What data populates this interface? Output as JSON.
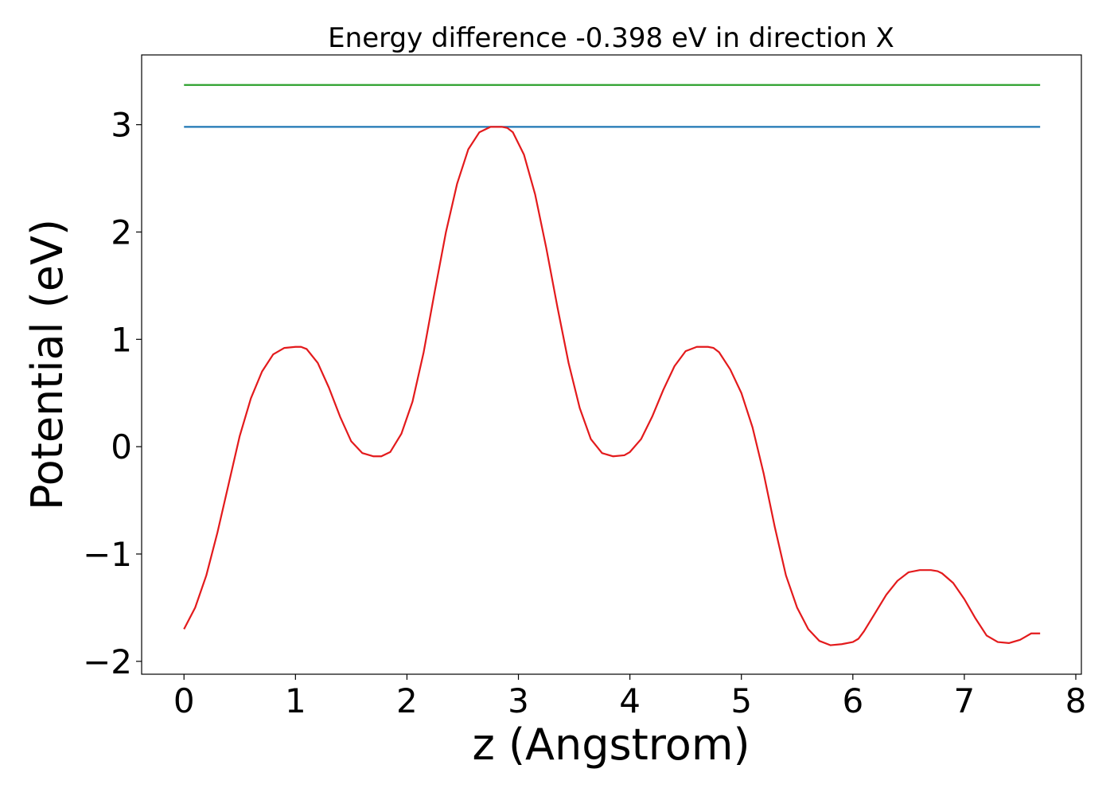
{
  "chart_data": {
    "type": "line",
    "title": "Energy difference -0.398 eV in direction X",
    "xlabel": "z (Angstrom)",
    "ylabel": "Potential (eV)",
    "xlim": [
      -0.38,
      8.05
    ],
    "ylim": [
      -2.12,
      3.65
    ],
    "xticks": [
      0,
      1,
      2,
      3,
      4,
      5,
      6,
      7,
      8
    ],
    "xtick_labels": [
      "0",
      "1",
      "2",
      "3",
      "4",
      "5",
      "6",
      "7",
      "8"
    ],
    "yticks": [
      -2,
      -1,
      0,
      1,
      2,
      3
    ],
    "ytick_labels": [
      "−2",
      "−1",
      "0",
      "1",
      "2",
      "3"
    ],
    "grid": false,
    "series": [
      {
        "color": "#2ca02c",
        "x": [
          0,
          7.68
        ],
        "y": [
          3.37,
          3.37
        ]
      },
      {
        "color": "#1f77b4",
        "x": [
          0,
          7.68
        ],
        "y": [
          2.98,
          2.98
        ]
      },
      {
        "color": "#e31a1c",
        "x": [
          0.0,
          0.1,
          0.2,
          0.3,
          0.4,
          0.5,
          0.6,
          0.7,
          0.8,
          0.9,
          1.0,
          1.05,
          1.1,
          1.2,
          1.3,
          1.4,
          1.5,
          1.6,
          1.7,
          1.77,
          1.85,
          1.95,
          2.05,
          2.15,
          2.25,
          2.35,
          2.45,
          2.55,
          2.65,
          2.75,
          2.85,
          2.9,
          2.95,
          3.05,
          3.15,
          3.25,
          3.35,
          3.45,
          3.55,
          3.65,
          3.75,
          3.85,
          3.95,
          4.0,
          4.1,
          4.2,
          4.3,
          4.4,
          4.5,
          4.6,
          4.7,
          4.75,
          4.8,
          4.9,
          5.0,
          5.1,
          5.2,
          5.3,
          5.4,
          5.5,
          5.6,
          5.7,
          5.8,
          5.9,
          6.0,
          6.05,
          6.1,
          6.2,
          6.3,
          6.4,
          6.5,
          6.6,
          6.7,
          6.76,
          6.8,
          6.9,
          7.0,
          7.1,
          7.2,
          7.3,
          7.4,
          7.5,
          7.55,
          7.6,
          7.68
        ],
        "y": [
          -1.7,
          -1.5,
          -1.2,
          -0.8,
          -0.35,
          0.1,
          0.45,
          0.7,
          0.86,
          0.92,
          0.93,
          0.93,
          0.91,
          0.78,
          0.55,
          0.28,
          0.05,
          -0.06,
          -0.09,
          -0.09,
          -0.05,
          0.12,
          0.42,
          0.88,
          1.45,
          2.0,
          2.45,
          2.77,
          2.93,
          2.98,
          2.98,
          2.97,
          2.93,
          2.72,
          2.35,
          1.85,
          1.3,
          0.78,
          0.36,
          0.07,
          -0.06,
          -0.09,
          -0.08,
          -0.05,
          0.07,
          0.28,
          0.53,
          0.75,
          0.89,
          0.93,
          0.93,
          0.92,
          0.88,
          0.72,
          0.5,
          0.18,
          -0.25,
          -0.75,
          -1.2,
          -1.5,
          -1.7,
          -1.81,
          -1.85,
          -1.84,
          -1.82,
          -1.79,
          -1.72,
          -1.55,
          -1.38,
          -1.25,
          -1.17,
          -1.15,
          -1.15,
          -1.16,
          -1.18,
          -1.27,
          -1.42,
          -1.6,
          -1.76,
          -1.82,
          -1.83,
          -1.8,
          -1.77,
          -1.74,
          -1.74
        ]
      }
    ]
  }
}
